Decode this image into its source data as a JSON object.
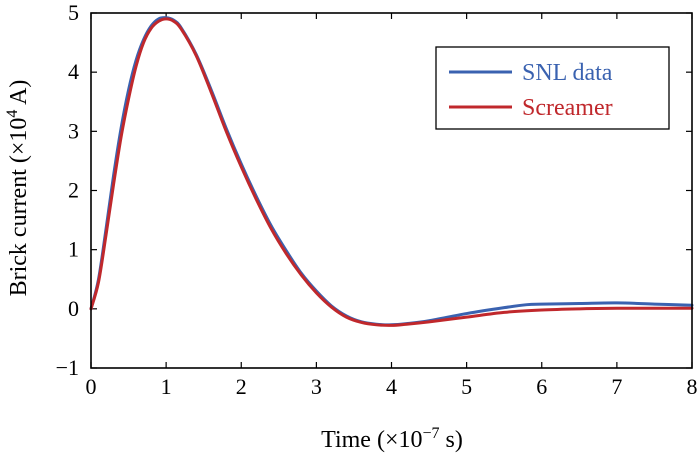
{
  "chart_data": {
    "type": "line",
    "xlabel": "Time (×10",
    "xlabel_exp": "−7",
    "xlabel_unit": " s)",
    "ylabel": "Brick current (×10",
    "ylabel_exp": "4",
    "ylabel_unit": " A)",
    "xlim": [
      0,
      8
    ],
    "ylim": [
      -1,
      5
    ],
    "xticks": [
      "0",
      "1",
      "2",
      "3",
      "4",
      "5",
      "6",
      "7",
      "8"
    ],
    "yticks": [
      "−1",
      "0",
      "1",
      "2",
      "3",
      "4",
      "5"
    ],
    "grid": false,
    "legend_position": "top-right",
    "series": [
      {
        "name": "SNL data",
        "color": "#3a62b0",
        "x": [
          0,
          0.1,
          0.2,
          0.3,
          0.4,
          0.5,
          0.6,
          0.7,
          0.8,
          0.9,
          1.0,
          1.1,
          1.2,
          1.4,
          1.6,
          1.8,
          2.0,
          2.2,
          2.4,
          2.6,
          2.8,
          3.0,
          3.2,
          3.4,
          3.6,
          3.8,
          4.0,
          4.2,
          4.5,
          5.0,
          5.5,
          5.8,
          6.0,
          6.5,
          7.0,
          7.5,
          8.0
        ],
        "y": [
          0,
          0.5,
          1.35,
          2.25,
          3.05,
          3.7,
          4.2,
          4.55,
          4.78,
          4.9,
          4.92,
          4.88,
          4.75,
          4.3,
          3.7,
          3.05,
          2.45,
          1.9,
          1.4,
          0.98,
          0.6,
          0.3,
          0.05,
          -0.12,
          -0.22,
          -0.26,
          -0.27,
          -0.25,
          -0.2,
          -0.08,
          0.02,
          0.07,
          0.08,
          0.09,
          0.1,
          0.08,
          0.06
        ]
      },
      {
        "name": "Screamer",
        "color": "#c0282c",
        "x": [
          0,
          0.1,
          0.2,
          0.3,
          0.4,
          0.5,
          0.6,
          0.7,
          0.8,
          0.9,
          1.0,
          1.1,
          1.2,
          1.4,
          1.6,
          1.8,
          2.0,
          2.2,
          2.4,
          2.6,
          2.8,
          3.0,
          3.2,
          3.4,
          3.6,
          3.8,
          4.0,
          4.2,
          4.5,
          5.0,
          5.5,
          6.0,
          6.5,
          7.0,
          7.5,
          8.0
        ],
        "y": [
          0,
          0.45,
          1.25,
          2.1,
          2.9,
          3.55,
          4.1,
          4.5,
          4.74,
          4.86,
          4.9,
          4.86,
          4.73,
          4.28,
          3.66,
          3.0,
          2.4,
          1.85,
          1.35,
          0.93,
          0.57,
          0.27,
          0.03,
          -0.14,
          -0.23,
          -0.27,
          -0.28,
          -0.26,
          -0.22,
          -0.14,
          -0.06,
          -0.02,
          0.0,
          0.01,
          0.01,
          0.01
        ]
      }
    ]
  }
}
